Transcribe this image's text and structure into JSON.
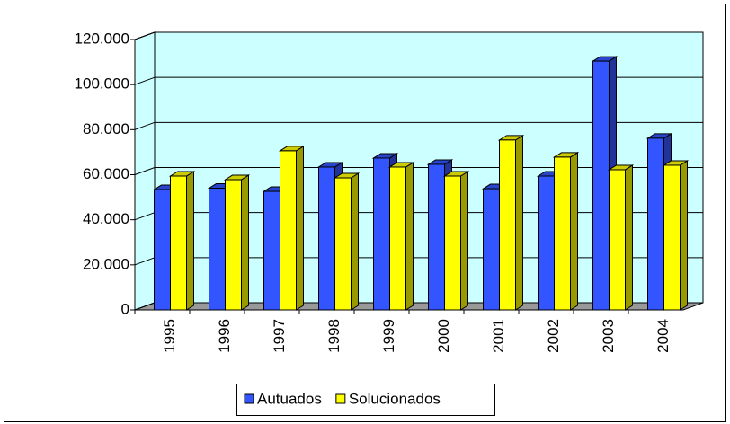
{
  "chart_data": {
    "type": "bar3d",
    "categories": [
      "1995",
      "1996",
      "1997",
      "1998",
      "1999",
      "2000",
      "2001",
      "2002",
      "2003",
      "2004"
    ],
    "series": [
      {
        "name": "Autuados",
        "color": "#3355ff",
        "values": [
          53400,
          54000,
          52600,
          63400,
          67400,
          64600,
          53800,
          59400,
          110400,
          76200
        ]
      },
      {
        "name": "Solucionados",
        "color": "#ffff00",
        "values": [
          59400,
          57800,
          70600,
          58600,
          63400,
          59400,
          75400,
          67800,
          62200,
          64200
        ]
      }
    ],
    "ylim": [
      0,
      120000
    ],
    "yticks": [
      0,
      {
        "value": 20000,
        "label": "20.000"
      },
      {
        "value": 40000,
        "label": "40.000"
      },
      {
        "value": 60000,
        "label": "60.000"
      },
      {
        "value": 80000,
        "label": "80.000"
      },
      {
        "value": 100000,
        "label": "100.000"
      },
      {
        "value": 120000,
        "label": "120.000"
      }
    ],
    "grid": true,
    "legend": "bottom"
  }
}
